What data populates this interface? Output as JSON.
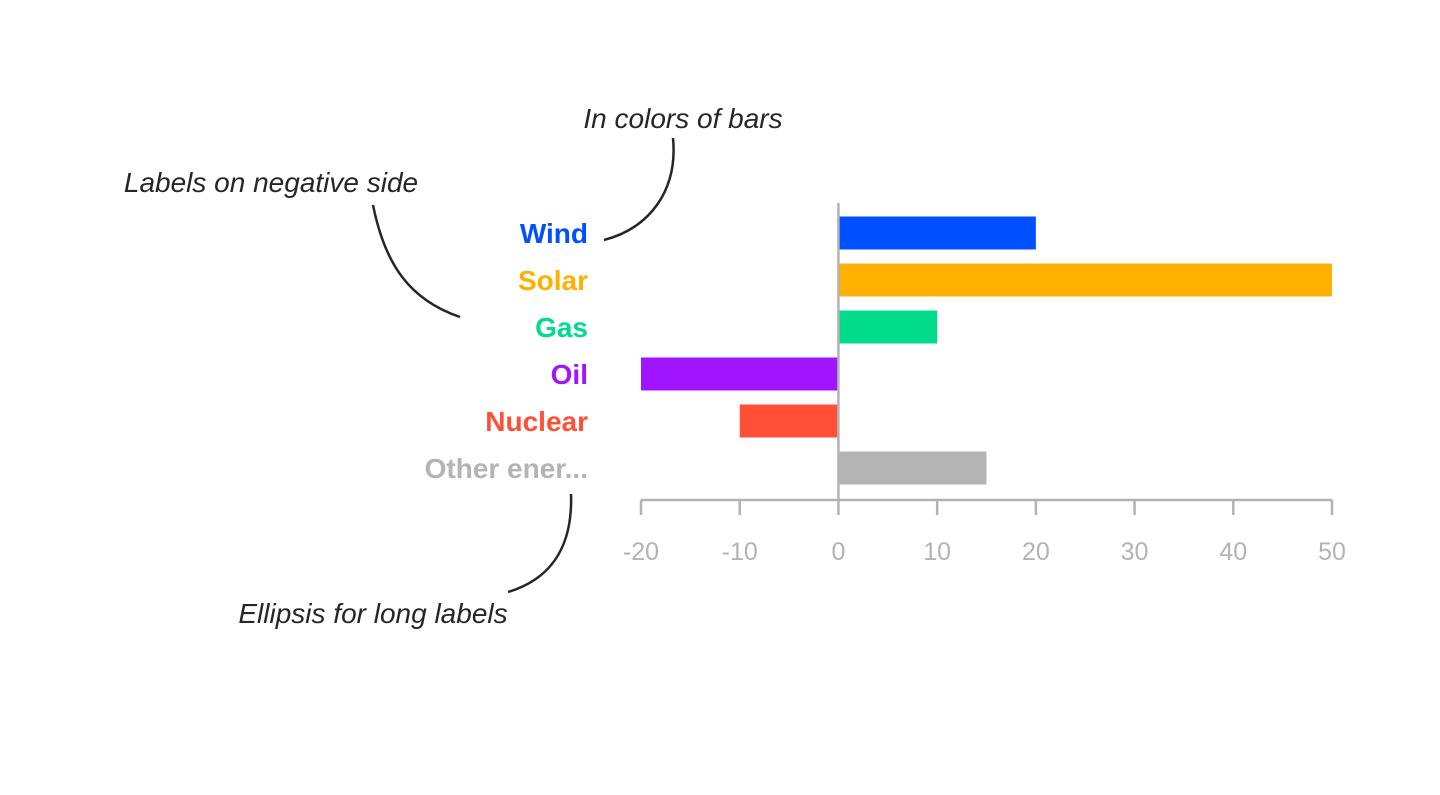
{
  "chart_data": {
    "type": "bar",
    "orientation": "horizontal",
    "categories": [
      "Wind",
      "Solar",
      "Gas",
      "Oil",
      "Nuclear",
      "Other ener..."
    ],
    "values": [
      20,
      50,
      10,
      -20,
      -10,
      15
    ],
    "colors": [
      "#0050ff",
      "#ffb000",
      "#00dc8c",
      "#a014ff",
      "#ff5037",
      "#b4b4b4"
    ],
    "xlim": [
      -20,
      50
    ],
    "xticks": [
      -20,
      -10,
      0,
      10,
      20,
      30,
      40,
      50
    ],
    "grid": false,
    "title": "",
    "xlabel": "",
    "ylabel": ""
  },
  "annotations": {
    "colors": "In colors of bars",
    "negative_side": "Labels on negative side",
    "ellipsis": "Ellipsis for long labels"
  }
}
